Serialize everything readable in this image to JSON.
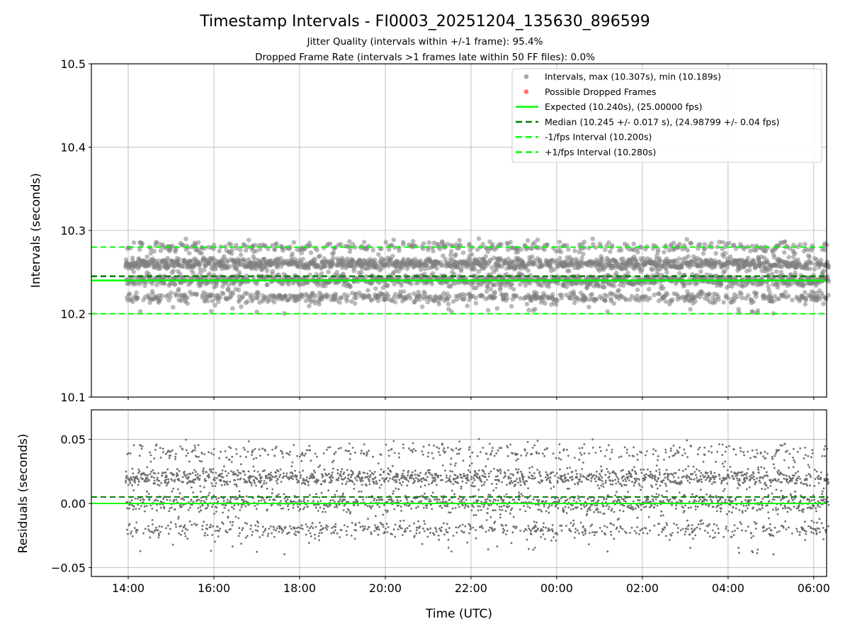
{
  "chart_data": [
    {
      "type": "scatter",
      "title": "Timestamp Intervals - FI0003_20251204_135630_896599",
      "subtitle_lines": [
        "Jitter Quality (intervals within +/-1 frame): 95.4%",
        "Dropped Frame Rate (intervals >1 frames late within 50 FF files): 0.0%"
      ],
      "xlabel": "",
      "ylabel": "Intervals (seconds)",
      "ylim": [
        10.1,
        10.5
      ],
      "yticks": [
        10.1,
        10.2,
        10.3,
        10.4,
        10.5
      ],
      "ytick_labels": [
        "10.1",
        "10.2",
        "10.3",
        "10.4",
        "10.5"
      ],
      "grid": true,
      "legend_position": "top-right",
      "legend": [
        {
          "label": "Intervals, max (10.307s), min (10.189s)",
          "kind": "marker",
          "color": "#a0a0a0"
        },
        {
          "label": "Possible Dropped Frames",
          "kind": "marker",
          "color": "#ff6060"
        },
        {
          "label": "Expected (10.240s), (25.00000 fps)",
          "kind": "solid",
          "color": "#00ff00"
        },
        {
          "label": "Median (10.245 +/- 0.017 s), (24.98799 +/- 0.04 fps)",
          "kind": "dashed",
          "color": "#008000"
        },
        {
          "label": "-1/fps Interval (10.200s)",
          "kind": "dashed",
          "color": "#00ff00"
        },
        {
          "label": "+1/fps Interval (10.280s)",
          "kind": "dashed",
          "color": "#00ff00"
        }
      ],
      "reference_lines": {
        "expected": 10.24,
        "median": 10.245,
        "minus_1_fps": 10.2,
        "plus_1_fps": 10.28
      },
      "series": {
        "name": "Intervals",
        "max": 10.307,
        "min": 10.189,
        "levels": [
          10.22,
          10.24,
          10.26,
          10.28
        ],
        "level_weights": [
          0.16,
          0.3,
          0.38,
          0.1
        ],
        "x_start_hours_after_1400": -0.06,
        "x_end_hours_after_1400": 16.35,
        "approx_point_count": 3500
      },
      "dropped_frames": []
    },
    {
      "type": "scatter",
      "xlabel": "Time (UTC)",
      "ylabel": "Residuals (seconds)",
      "ylim": [
        -0.057,
        0.073
      ],
      "yticks": [
        -0.05,
        0.0,
        0.05
      ],
      "ytick_labels": [
        "−0.05",
        "0.00",
        "0.05"
      ],
      "xlim_hours_after_1400": [
        -0.86,
        16.3
      ],
      "xticks_hours_after_1400": [
        0,
        2,
        4,
        6,
        8,
        10,
        12,
        14,
        16
      ],
      "xtick_labels": [
        "14:00",
        "16:00",
        "18:00",
        "20:00",
        "22:00",
        "00:00",
        "02:00",
        "04:00",
        "06:00"
      ],
      "reference_lines": {
        "expected": 0.0,
        "median": 0.005
      },
      "grid": true
    }
  ],
  "colors": {
    "interval_marker": "#808080",
    "residual_marker": "#6e6e6e",
    "expected": "#00ff00",
    "median": "#008000",
    "grid": "#b0b0b0"
  }
}
